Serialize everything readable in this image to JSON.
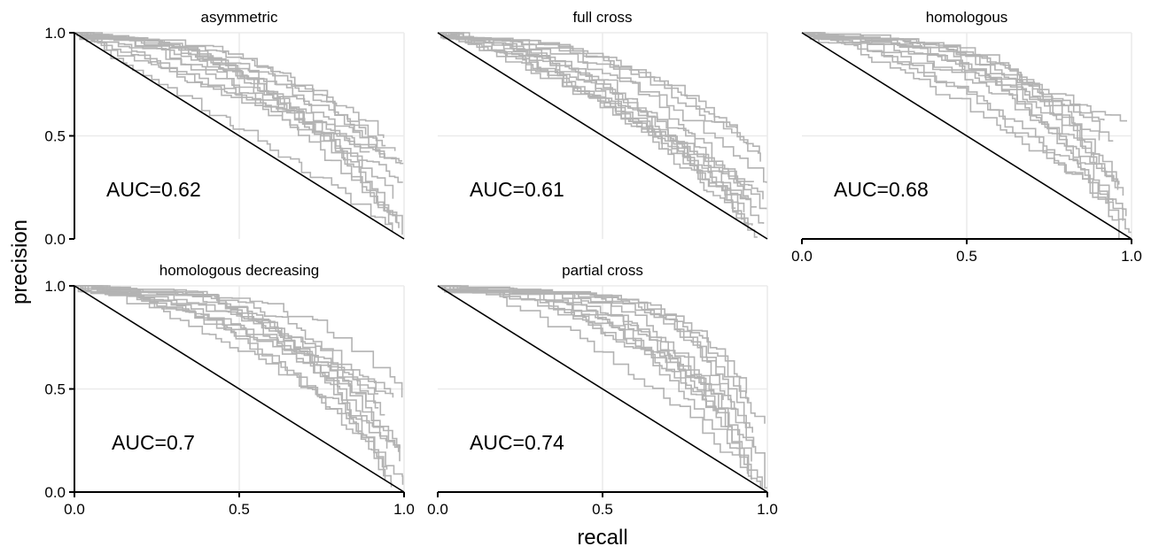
{
  "chart_data": {
    "type": "line",
    "description": "precision-recall curves in facets",
    "xlabel": "recall",
    "ylabel": "precision",
    "xlim": [
      0,
      1
    ],
    "ylim": [
      0,
      1
    ],
    "x_ticks": [
      "0.0",
      "0.5",
      "1.0"
    ],
    "y_ticks": [
      "0.0",
      "0.5",
      "1.0"
    ],
    "grid": true,
    "curve_color": "#b3b3b3",
    "reference_line": {
      "x": [
        0,
        1
      ],
      "y": [
        1,
        0
      ],
      "color": "#000000"
    },
    "panels": [
      {
        "title": "asymmetric",
        "auc_label": "AUC=0.62",
        "auc": 0.62,
        "curves": 15
      },
      {
        "title": "full cross",
        "auc_label": "AUC=0.61",
        "auc": 0.61,
        "curves": 15
      },
      {
        "title": "homologous",
        "auc_label": "AUC=0.68",
        "auc": 0.68,
        "curves": 14
      },
      {
        "title": "homologous decreasing",
        "auc_label": "AUC=0.7",
        "auc": 0.7,
        "curves": 14
      },
      {
        "title": "partial cross",
        "auc_label": "AUC=0.74",
        "auc": 0.74,
        "curves": 15
      }
    ]
  }
}
